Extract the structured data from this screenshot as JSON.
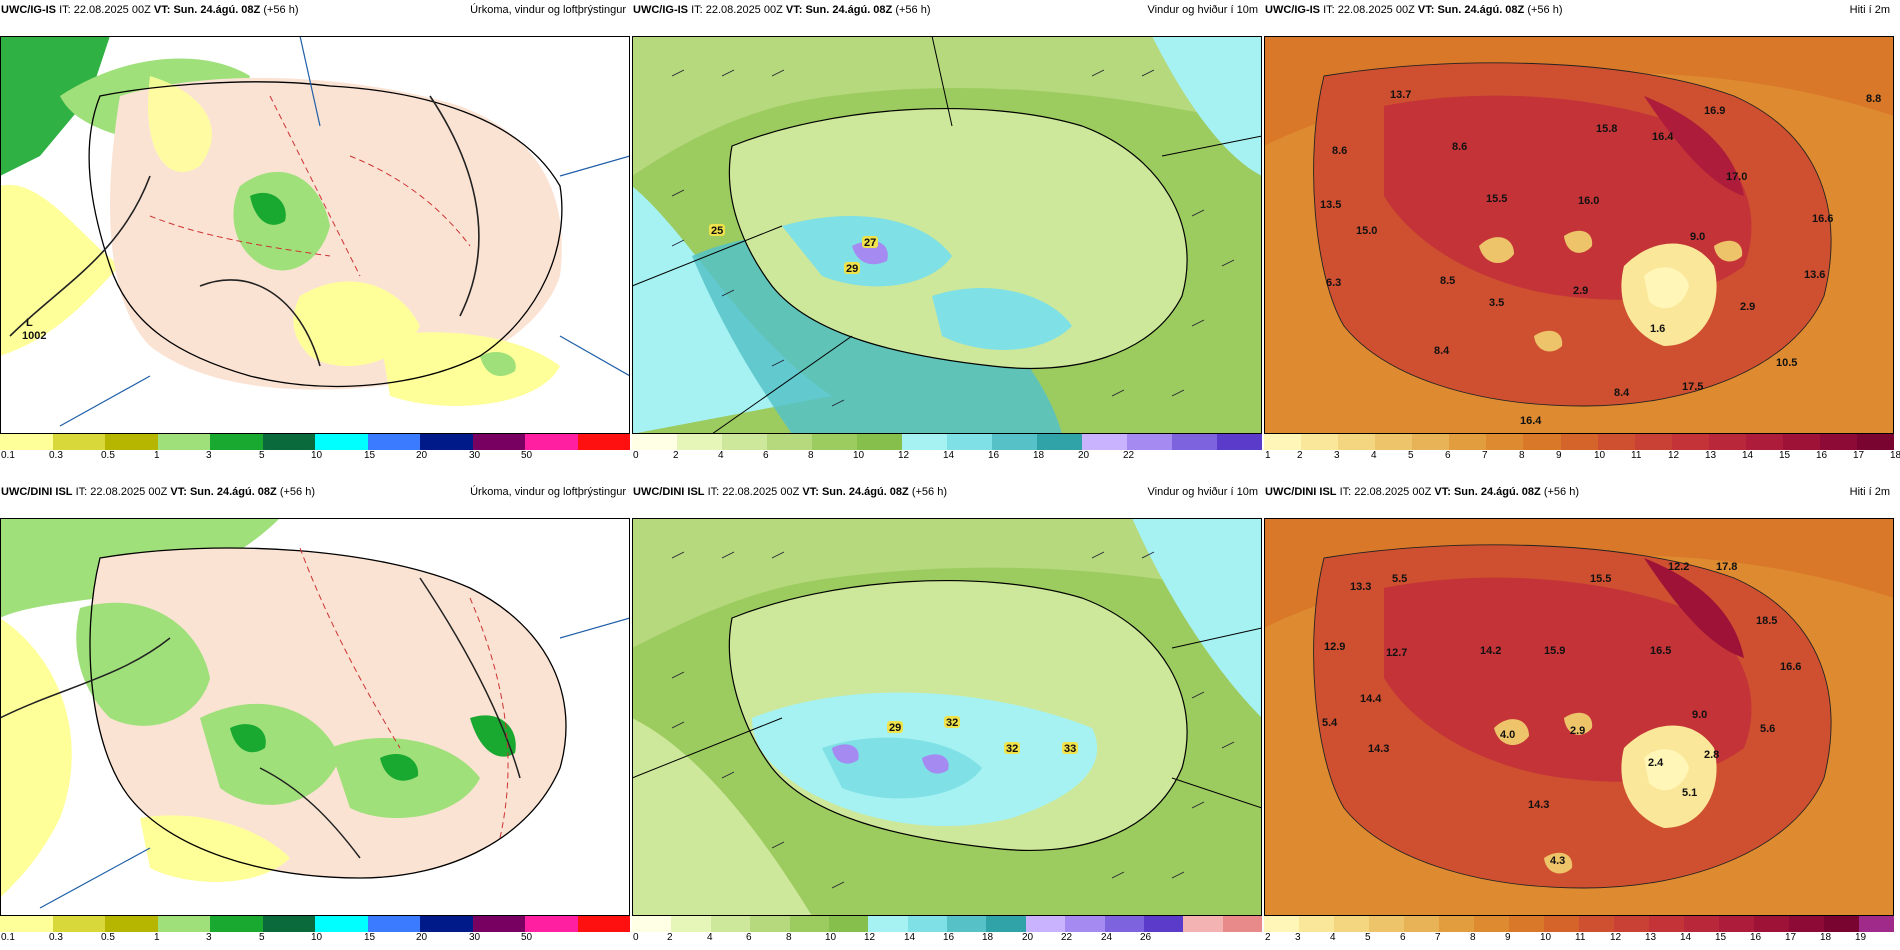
{
  "panels": [
    {
      "id": "ig-precip",
      "model": "UWC/IG-IS",
      "it_label": "IT:",
      "it": "22.08.2025 00Z",
      "vt_label": "VT:",
      "vt": "Sun. 24.ágú. 08Z",
      "lead": "(+56 h)",
      "title": "Úrkoma, vindur og loftþrýstingur",
      "colorbar": {
        "colors": [
          "#ffff9a",
          "#d8d83a",
          "#b6b600",
          "#9fe07a",
          "#19a830",
          "#0a6a3c",
          "#00ffff",
          "#3b7bff",
          "#001a8a",
          "#770060",
          "#ff1fa0",
          "#ff1010"
        ],
        "ticks": [
          "0.1",
          "0.3",
          "0.5",
          "1",
          "3",
          "5",
          "10",
          "15",
          "20",
          "30",
          "50"
        ]
      },
      "annotations": [
        "L",
        "1002"
      ]
    },
    {
      "id": "ig-wind",
      "model": "UWC/IG-IS",
      "it_label": "IT:",
      "it": "22.08.2025 00Z",
      "vt_label": "VT:",
      "vt": "Sun. 24.ágú. 08Z",
      "lead": "(+56 h)",
      "title": "Vindur og hviður í 10m",
      "colorbar": {
        "colors": [
          "#ffffe6",
          "#e6f5b8",
          "#cde89a",
          "#b5d97c",
          "#9ccb60",
          "#86bf4c",
          "#a6f2f2",
          "#7fe0e6",
          "#56c2c8",
          "#2fa3a8",
          "#c9b3ff",
          "#a58af2",
          "#7d63de",
          "#5b3bc9"
        ],
        "ticks": [
          "0",
          "2",
          "4",
          "6",
          "8",
          "10",
          "12",
          "14",
          "16",
          "18",
          "20",
          "22"
        ]
      },
      "gust_labels": [
        "25",
        "27",
        "29"
      ]
    },
    {
      "id": "ig-temp",
      "model": "UWC/IG-IS",
      "it_label": "IT:",
      "it": "22.08.2025 00Z",
      "vt_label": "VT:",
      "vt": "Sun. 24.ágú. 08Z",
      "lead": "(+56 h)",
      "title": "Hiti í 2m",
      "colorbar": {
        "colors": [
          "#fff6b8",
          "#fbe79a",
          "#f4d680",
          "#eec46a",
          "#e8b256",
          "#e29d3f",
          "#dd8a30",
          "#d97829",
          "#d46429",
          "#cf5030",
          "#c94034",
          "#c33337",
          "#b9273a",
          "#ad1c3a",
          "#9e1238",
          "#8c0a35",
          "#7a0430"
        ],
        "ticks": [
          "1",
          "2",
          "3",
          "4",
          "5",
          "6",
          "7",
          "8",
          "9",
          "10",
          "11",
          "12",
          "13",
          "14",
          "15",
          "16",
          "17",
          "18"
        ]
      },
      "temperature_labels": [
        "13.7",
        "8.6",
        "8.6",
        "15.8",
        "16.4",
        "16.9",
        "8.8",
        "13.5",
        "15.5",
        "16.0",
        "17.0",
        "15.0",
        "9.0",
        "16.6",
        "6.3",
        "8.5",
        "3.5",
        "2.9",
        "13.6",
        "2.9",
        "1.6",
        "8.4",
        "10.5",
        "8.4",
        "17.5",
        "16.4"
      ]
    },
    {
      "id": "dini-precip",
      "model": "UWC/DINI ISL",
      "it_label": "IT:",
      "it": "22.08.2025 00Z",
      "vt_label": "VT:",
      "vt": "Sun. 24.ágú. 08Z",
      "lead": "(+56 h)",
      "title": "Úrkoma, vindur og loftþrýstingur",
      "colorbar": {
        "colors": [
          "#ffff9a",
          "#d8d83a",
          "#b6b600",
          "#9fe07a",
          "#19a830",
          "#0a6a3c",
          "#00ffff",
          "#3b7bff",
          "#001a8a",
          "#770060",
          "#ff1fa0",
          "#ff1010"
        ],
        "ticks": [
          "0.1",
          "0.3",
          "0.5",
          "1",
          "3",
          "5",
          "10",
          "15",
          "20",
          "30",
          "50"
        ]
      }
    },
    {
      "id": "dini-wind",
      "model": "UWC/DINI ISL",
      "it_label": "IT:",
      "it": "22.08.2025 00Z",
      "vt_label": "VT:",
      "vt": "Sun. 24.ágú. 08Z",
      "lead": "(+56 h)",
      "title": "Vindur og hviður í 10m",
      "colorbar": {
        "colors": [
          "#ffffe6",
          "#e6f5b8",
          "#cde89a",
          "#b5d97c",
          "#9ccb60",
          "#86bf4c",
          "#a6f2f2",
          "#7fe0e6",
          "#56c2c8",
          "#2fa3a8",
          "#c9b3ff",
          "#a58af2",
          "#7d63de",
          "#5b3bc9",
          "#f4b3b3",
          "#e98a8a"
        ],
        "ticks": [
          "0",
          "2",
          "4",
          "6",
          "8",
          "10",
          "12",
          "14",
          "16",
          "18",
          "20",
          "22",
          "24",
          "26"
        ]
      },
      "gust_labels": [
        "29",
        "32",
        "32",
        "33"
      ]
    },
    {
      "id": "dini-temp",
      "model": "UWC/DINI ISL",
      "it_label": "IT:",
      "it": "22.08.2025 00Z",
      "vt_label": "VT:",
      "vt": "Sun. 24.ágú. 08Z",
      "lead": "(+56 h)",
      "title": "Hiti í 2m",
      "colorbar": {
        "colors": [
          "#fff6b8",
          "#fbe79a",
          "#f4d680",
          "#eec46a",
          "#e8b256",
          "#e29d3f",
          "#dd8a30",
          "#d97829",
          "#d46429",
          "#cf5030",
          "#c94034",
          "#c33337",
          "#b9273a",
          "#ad1c3a",
          "#9e1238",
          "#8c0a35",
          "#7a0430",
          "#a02a8a"
        ],
        "ticks": [
          "2",
          "3",
          "4",
          "5",
          "6",
          "7",
          "8",
          "9",
          "10",
          "11",
          "12",
          "13",
          "14",
          "15",
          "16",
          "17",
          "18",
          "19"
        ]
      },
      "temperature_labels": [
        "13.3",
        "5.5",
        "15.5",
        "12.2",
        "17.8",
        "12.9",
        "12.7",
        "14.2",
        "15.9",
        "16.5",
        "18.5",
        "16.6",
        "14.4",
        "9.0",
        "5.4",
        "4.0",
        "2.9",
        "5.6",
        "14.3",
        "2.4",
        "2.8",
        "5.1",
        "14.3",
        "4.3"
      ]
    }
  ]
}
